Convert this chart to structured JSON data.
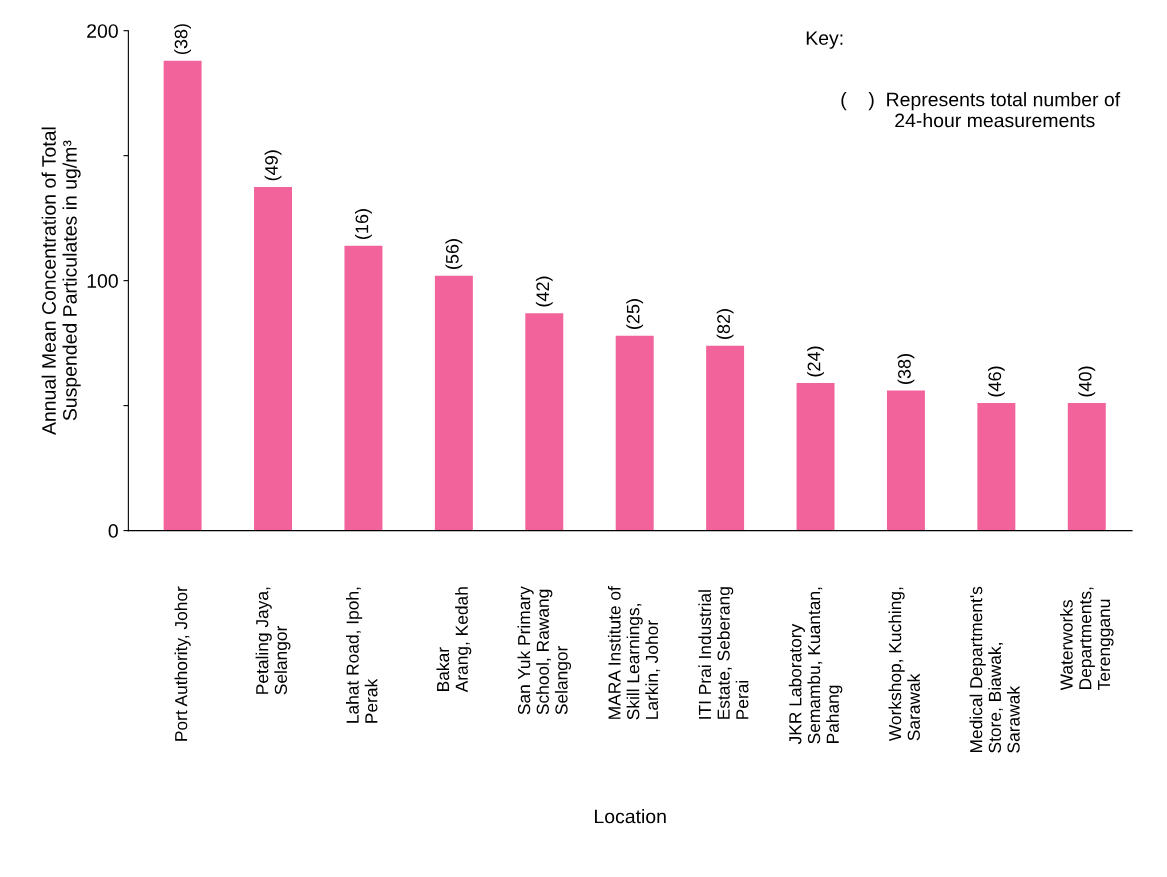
{
  "chart_data": {
    "type": "bar",
    "xlabel": "Location",
    "ylabel": "Annual Mean Concentration of Total\nSuspended Particulates in ug/m³",
    "categories": [
      "Port Authority, Johor",
      "Petaling Jaya,\nSelangor",
      "Lahat Road, Ipoh,\nPerak",
      "Bakar\nArang, Kedah",
      "San Yuk Primary\nSchool, Rawang\nSelangor",
      "MARA Institute of\nSkill Learnings,\nLarkin, Johor",
      "ITI Prai Industrial\nEstate, Seberang\nPerai",
      "JKR Laboratory\nSemambu, Kuantan,\nPahang",
      "Workshop, Kuching,\nSarawak",
      "Medical Department's\nStore, Biawak,\nSarawak",
      "Waterworks\nDepartments,\nTerengganu"
    ],
    "values": [
      188,
      137.5,
      114,
      102,
      87,
      78,
      74,
      59,
      56,
      51,
      51
    ],
    "color": "#f2639c",
    "ylim": [
      0,
      200
    ],
    "yticks": [
      0,
      {
        "value": 50,
        "label": null
      },
      100,
      {
        "value": 150,
        "label": null
      },
      200
    ],
    "annotations": [
      "Key:",
      "(    )  Represents total number of\n          24-hour measurements",
      {
        "text": "(38)",
        "x": "Port Authority, Johor",
        "y": 188
      },
      {
        "text": "(49)",
        "x": "Petaling Jaya,\nSelangor",
        "y": 137.5
      },
      {
        "text": "(16)",
        "x": "Lahat Road, Ipoh,\nPerak",
        "y": 114
      },
      {
        "text": "(56)",
        "x": "Bakar\nArang, Kedah",
        "y": 102
      },
      {
        "text": "(42)",
        "x": "San Yuk Primary\nSchool, Rawang\nSelangor",
        "y": 87
      },
      {
        "text": "(25)",
        "x": "MARA Institute of\nSkill Learnings,\nLarkin, Johor",
        "y": 78
      },
      {
        "text": "(82)",
        "x": "ITI Prai Industrial\nEstate, Seberang\nPerai",
        "y": 74
      },
      {
        "text": "(24)",
        "x": "JKR Laboratory\nSemambu, Kuantan,\nPahang",
        "y": 59
      },
      {
        "text": "(38)",
        "x": "Workshop, Kuching,\nSarawak",
        "y": 56
      },
      {
        "text": "(46)",
        "x": "Medical Department's\nStore, Biawak,\nSarawak",
        "y": 51
      },
      {
        "text": "(40)",
        "x": "Waterworks\nDepartments,\nTerengganu",
        "y": 51
      }
    ],
    "grid": false,
    "legend": false
  }
}
